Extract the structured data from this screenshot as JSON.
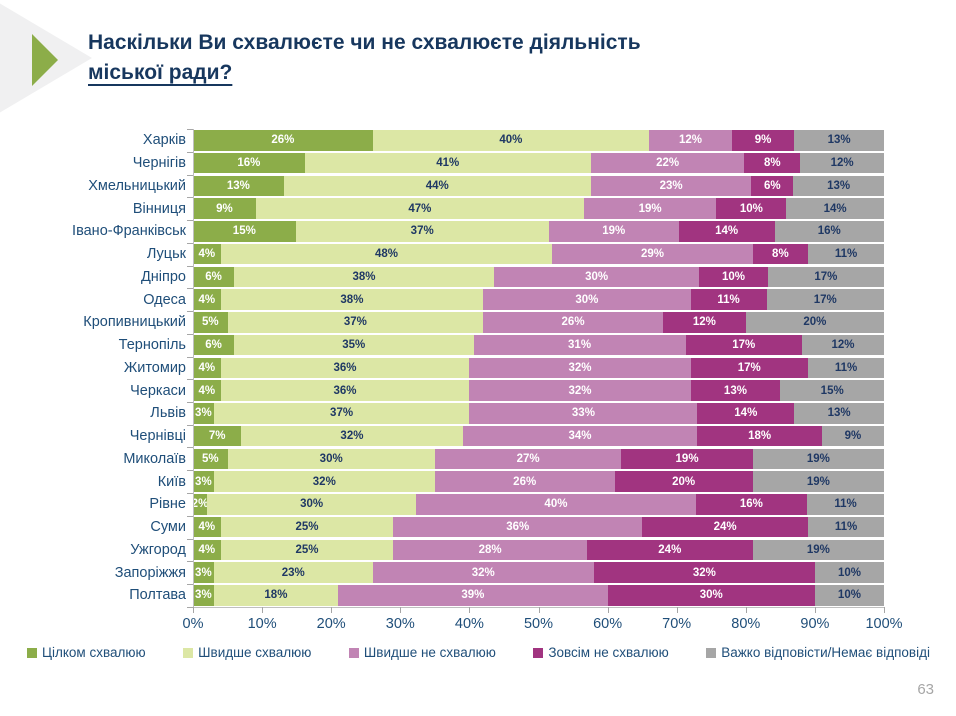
{
  "slide": {
    "title_line1": "Наскільки Ви схвалюєте чи не схвалюєте діяльність",
    "title_line2": "міської ради?",
    "page_number": "63"
  },
  "colors": {
    "title_navy": "#17375e",
    "label_navy": "#1f4e79",
    "value_dark": "#1f3864",
    "axis_gray": "#bfbfbf",
    "accent_green": "#8cad49",
    "chevron_gray": "#f0f0f1"
  },
  "chart_data": {
    "type": "bar",
    "stacked": true,
    "orientation": "horizontal",
    "xlim": [
      0,
      100
    ],
    "value_suffix": "%",
    "grid": false,
    "legend_position": "bottom",
    "x_ticks": [
      "0%",
      "10%",
      "20%",
      "30%",
      "40%",
      "50%",
      "60%",
      "70%",
      "80%",
      "90%",
      "100%"
    ],
    "categories": [
      "Харків",
      "Чернігів",
      "Хмельницький",
      "Вінниця",
      "Івано-Франківськ",
      "Луцьк",
      "Дніпро",
      "Одеса",
      "Кропивницький",
      "Тернопіль",
      "Житомир",
      "Черкаси",
      "Львів",
      "Чернівці",
      "Миколаїв",
      "Київ",
      "Рівне",
      "Суми",
      "Ужгород",
      "Запоріжжя",
      "Полтава"
    ],
    "series": [
      {
        "name": "Цілком схвалюю",
        "color": "#8cad49",
        "value_text_color": "#ffffff",
        "values": [
          26,
          16,
          13,
          9,
          15,
          4,
          6,
          4,
          5,
          6,
          4,
          4,
          3,
          7,
          5,
          3,
          2,
          4,
          4,
          3,
          3
        ]
      },
      {
        "name": "Швидше схвалюю",
        "color": "#dce7a5",
        "value_text_color": "#1f3864",
        "values": [
          40,
          41,
          44,
          47,
          37,
          48,
          38,
          38,
          37,
          35,
          36,
          36,
          37,
          32,
          30,
          32,
          30,
          25,
          25,
          23,
          18
        ]
      },
      {
        "name": "Швидше не схвалюю",
        "color": "#c184b4",
        "value_text_color": "#ffffff",
        "values": [
          12,
          22,
          23,
          19,
          19,
          29,
          30,
          30,
          26,
          31,
          32,
          32,
          33,
          34,
          27,
          26,
          40,
          36,
          28,
          32,
          39
        ]
      },
      {
        "name": "Зовсім не схвалюю",
        "color": "#a13480",
        "value_text_color": "#ffffff",
        "values": [
          9,
          8,
          6,
          10,
          14,
          8,
          10,
          11,
          12,
          17,
          17,
          13,
          14,
          18,
          19,
          20,
          16,
          24,
          24,
          32,
          30
        ]
      },
      {
        "name": "Важко відповісти/Немає відповіді",
        "color": "#a6a6a6",
        "value_text_color": "#1f3864",
        "values": [
          13,
          12,
          13,
          14,
          16,
          11,
          17,
          17,
          20,
          12,
          11,
          15,
          13,
          9,
          19,
          19,
          11,
          11,
          19,
          10,
          10
        ]
      }
    ]
  }
}
